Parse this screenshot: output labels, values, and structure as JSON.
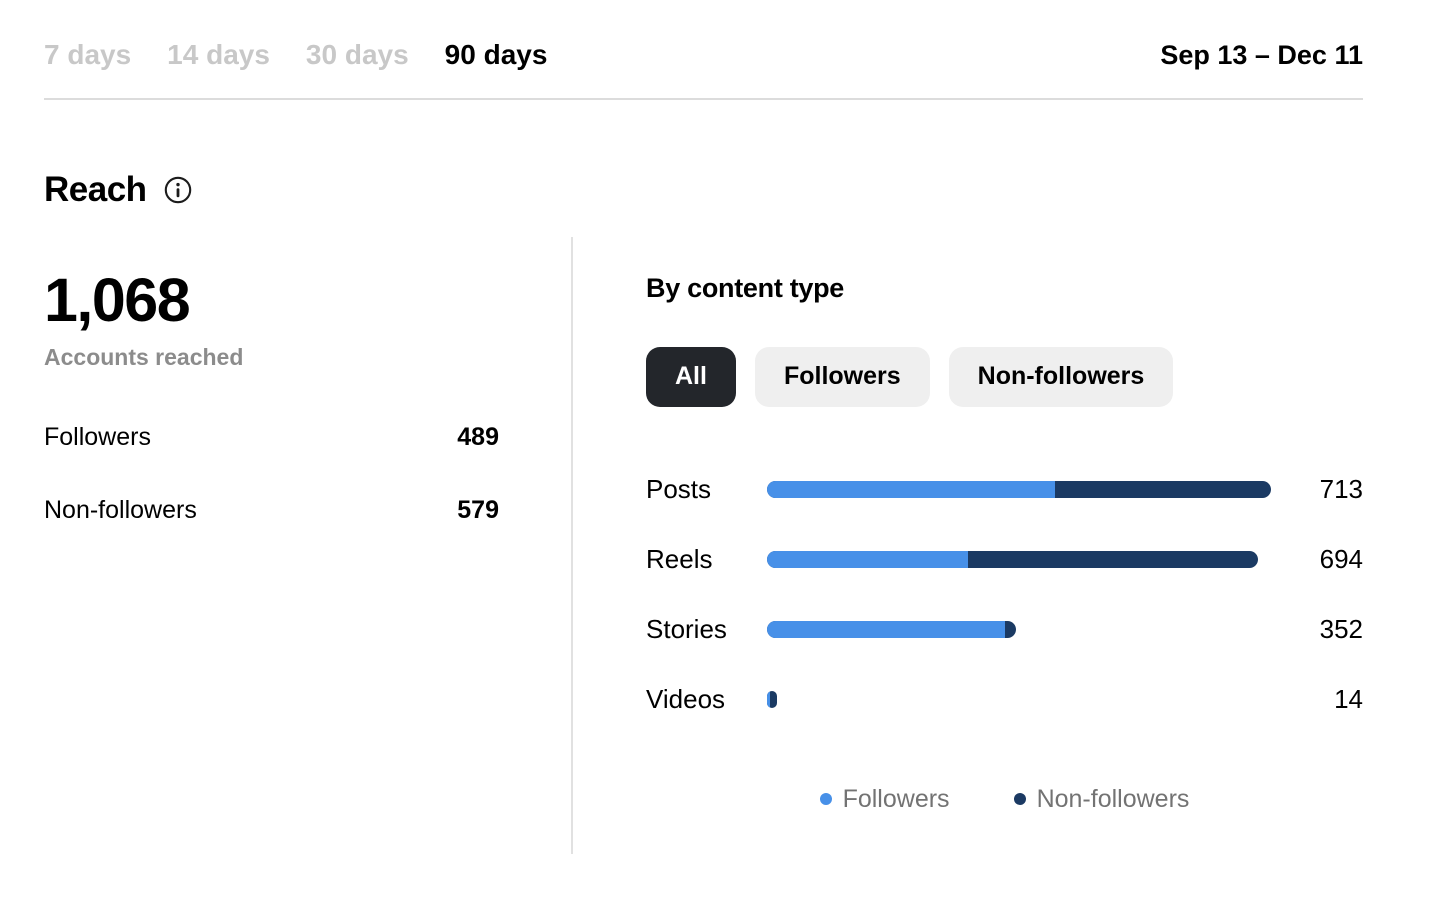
{
  "header": {
    "tabs": [
      {
        "label": "7 days",
        "active": false
      },
      {
        "label": "14 days",
        "active": false
      },
      {
        "label": "30 days",
        "active": false
      },
      {
        "label": "90 days",
        "active": true
      }
    ],
    "date_range": "Sep 13 – Dec 11"
  },
  "reach": {
    "title": "Reach",
    "info_icon": "info-icon",
    "total": "1,068",
    "total_caption": "Accounts reached",
    "breakdown": [
      {
        "label": "Followers",
        "value": "489"
      },
      {
        "label": "Non-followers",
        "value": "579"
      }
    ]
  },
  "content_type": {
    "title": "By content type",
    "filters": [
      {
        "label": "All",
        "active": true
      },
      {
        "label": "Followers",
        "active": false
      },
      {
        "label": "Non-followers",
        "active": false
      }
    ],
    "legend": [
      {
        "label": "Followers",
        "color": "#4790e8"
      },
      {
        "label": "Non-followers",
        "color": "#1b3a63"
      }
    ]
  },
  "colors": {
    "followers": "#4790e8",
    "non_followers": "#1b3a63",
    "inactive_tab": "#c8c8c8",
    "pill_active_bg": "#23262b",
    "pill_bg": "#efefef",
    "divider": "#dcdcdc"
  },
  "chart_data": {
    "type": "bar",
    "orientation": "horizontal",
    "stacked": true,
    "categories": [
      "Posts",
      "Reels",
      "Stories",
      "Videos"
    ],
    "totals": [
      713,
      694,
      352,
      14
    ],
    "series": [
      {
        "name": "Followers",
        "color": "#4790e8",
        "values": [
          407,
          284,
          336,
          4
        ]
      },
      {
        "name": "Non-followers",
        "color": "#1b3a63",
        "values": [
          306,
          410,
          16,
          10
        ]
      }
    ],
    "max_total": 713,
    "value_labels_shown": [
      "713",
      "694",
      "352",
      "14"
    ],
    "legend_position": "bottom",
    "note_values_estimated": "segment splits estimated from bar proportions"
  }
}
